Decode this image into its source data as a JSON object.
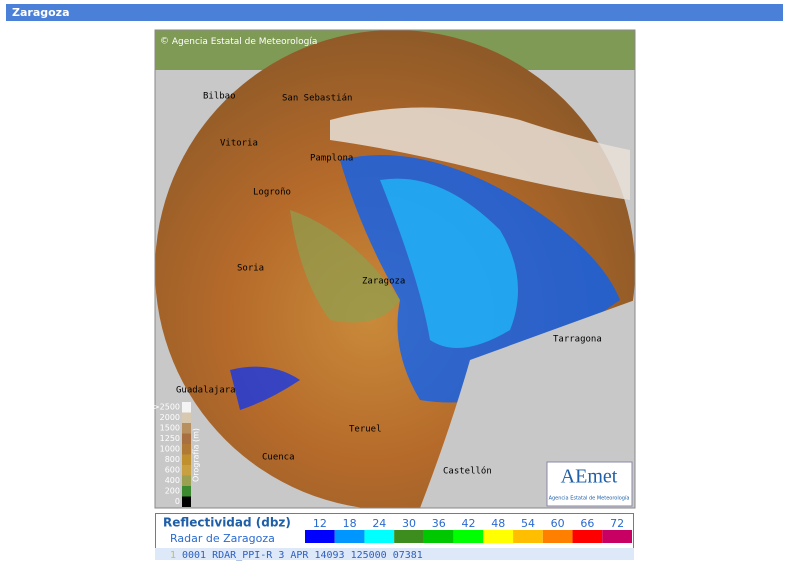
{
  "header": {
    "title": "Zaragoza"
  },
  "map": {
    "copyright": "Agencia Estatal de Meteorología",
    "cities": [
      "Bilbao",
      "San Sebastián",
      "Vitoria",
      "Pamplona",
      "Logroño",
      "Soria",
      "Zaragoza",
      "Tarragona",
      "Guadalajara",
      "Teruel",
      "Cuenca",
      "Castellón"
    ],
    "orography": {
      "title": "Orografía (m)",
      "levels": [
        ">2500",
        "2000",
        "1500",
        "1250",
        "1000",
        "800",
        "600",
        "400",
        "200",
        "0"
      ]
    },
    "logo": {
      "name": "AEmet",
      "subtitle": "Agencia Estatal de Meteorología"
    }
  },
  "legend": {
    "title": "Reflectividad (dbz)",
    "subtitle": "Radar de Zaragoza",
    "items": [
      {
        "label": "12",
        "color": "#0000fe"
      },
      {
        "label": "18",
        "color": "#0096ff"
      },
      {
        "label": "24",
        "color": "#00ffff"
      },
      {
        "label": "30",
        "color": "#3c8c1e"
      },
      {
        "label": "36",
        "color": "#00c800"
      },
      {
        "label": "42",
        "color": "#00ff00"
      },
      {
        "label": "48",
        "color": "#ffff00"
      },
      {
        "label": "54",
        "color": "#ffbe00"
      },
      {
        "label": "60",
        "color": "#ff8000"
      },
      {
        "label": "66",
        "color": "#ff0000"
      },
      {
        "label": "72",
        "color": "#c80064"
      }
    ]
  },
  "status": {
    "index": "1",
    "text": "0001 RDAR_PPI-R    3 APR 14093 125000 07381"
  }
}
